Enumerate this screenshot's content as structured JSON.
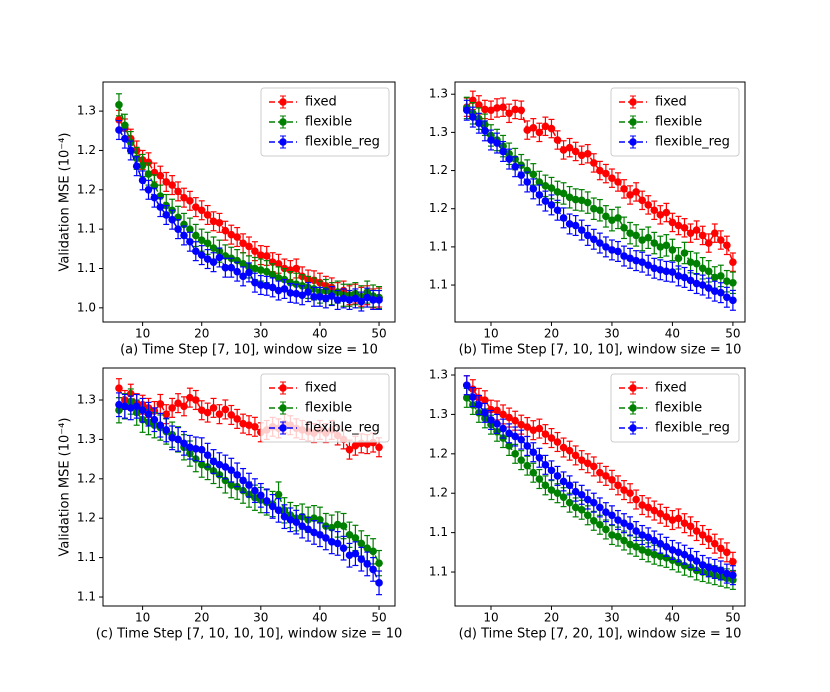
{
  "chart_data": [
    {
      "type": "line",
      "xlabel": "(a) Time Step [7, 10], window size = 10",
      "ylabel": "Validation MSE (10⁻⁴)",
      "x": [
        6,
        7,
        8,
        9,
        10,
        11,
        12,
        13,
        14,
        15,
        16,
        17,
        18,
        19,
        20,
        21,
        22,
        23,
        24,
        25,
        26,
        27,
        28,
        29,
        30,
        31,
        32,
        33,
        34,
        35,
        36,
        37,
        38,
        39,
        40,
        41,
        42,
        43,
        44,
        45,
        46,
        47,
        48,
        49,
        50
      ],
      "xlim": [
        3.3,
        52.7
      ],
      "xticks": [
        10,
        20,
        30,
        40,
        50
      ],
      "ylim": [
        0.982,
        1.287
      ],
      "yticks": [
        {
          "value": 1.0,
          "label": "1.0"
        },
        {
          "value": 1.05,
          "label": "1.1"
        },
        {
          "value": 1.1,
          "label": "1.1"
        },
        {
          "value": 1.15,
          "label": "1.2"
        },
        {
          "value": 1.2,
          "label": "1.2"
        },
        {
          "value": 1.25,
          "label": "1.3"
        }
      ],
      "legend": "upper right",
      "series": [
        {
          "name": "fixed",
          "color": "#ff0000",
          "error": 0.012,
          "values": [
            1.239,
            1.228,
            1.215,
            1.2,
            1.188,
            1.185,
            1.172,
            1.168,
            1.16,
            1.156,
            1.148,
            1.14,
            1.136,
            1.128,
            1.124,
            1.118,
            1.11,
            1.108,
            1.098,
            1.093,
            1.09,
            1.082,
            1.078,
            1.072,
            1.067,
            1.066,
            1.058,
            1.056,
            1.05,
            1.048,
            1.05,
            1.04,
            1.036,
            1.035,
            1.032,
            1.028,
            1.026,
            1.02,
            1.022,
            1.016,
            1.018,
            1.014,
            1.016,
            1.012,
            1.013
          ]
        },
        {
          "name": "flexible",
          "color": "#008000",
          "error": 0.014,
          "values": [
            1.258,
            1.232,
            1.21,
            1.19,
            1.181,
            1.17,
            1.155,
            1.142,
            1.13,
            1.124,
            1.115,
            1.106,
            1.1,
            1.092,
            1.086,
            1.082,
            1.076,
            1.072,
            1.066,
            1.063,
            1.06,
            1.056,
            1.052,
            1.05,
            1.048,
            1.046,
            1.042,
            1.038,
            1.036,
            1.032,
            1.03,
            1.028,
            1.026,
            1.024,
            1.02,
            1.022,
            1.018,
            1.02,
            1.016,
            1.016,
            1.018,
            1.014,
            1.02,
            1.015,
            1.013
          ]
        },
        {
          "name": "flexible_reg",
          "color": "#0000ff",
          "error": 0.012,
          "values": [
            1.226,
            1.215,
            1.2,
            1.18,
            1.162,
            1.15,
            1.14,
            1.128,
            1.118,
            1.112,
            1.1,
            1.092,
            1.084,
            1.072,
            1.067,
            1.062,
            1.058,
            1.064,
            1.051,
            1.051,
            1.046,
            1.04,
            1.045,
            1.032,
            1.029,
            1.028,
            1.026,
            1.022,
            1.024,
            1.019,
            1.018,
            1.016,
            1.02,
            1.014,
            1.014,
            1.012,
            1.015,
            1.01,
            1.012,
            1.01,
            1.012,
            1.008,
            1.013,
            1.01,
            1.01
          ]
        }
      ]
    },
    {
      "type": "line",
      "xlabel": "(b) Time Step [7, 10, 10], window size = 10",
      "x": [
        6,
        7,
        8,
        9,
        10,
        11,
        12,
        13,
        14,
        15,
        16,
        17,
        18,
        19,
        20,
        21,
        22,
        23,
        24,
        25,
        26,
        27,
        28,
        29,
        30,
        31,
        32,
        33,
        34,
        35,
        36,
        37,
        38,
        39,
        40,
        41,
        42,
        43,
        44,
        45,
        46,
        47,
        48,
        49,
        50
      ],
      "xlim": [
        4.05,
        52.0
      ],
      "xticks": [
        10,
        20,
        30,
        40,
        50
      ],
      "ylim": [
        1.0016,
        1.316
      ],
      "yticks": [
        {
          "value": 1.05,
          "label": "1.1"
        },
        {
          "value": 1.1,
          "label": "1.1"
        },
        {
          "value": 1.15,
          "label": "1.2"
        },
        {
          "value": 1.2,
          "label": "1.2"
        },
        {
          "value": 1.25,
          "label": "1.3"
        },
        {
          "value": 1.3,
          "label": "1.3"
        }
      ],
      "legend": "upper right",
      "series": [
        {
          "name": "fixed",
          "color": "#ff0000",
          "error": 0.012,
          "values": [
            1.283,
            1.292,
            1.286,
            1.28,
            1.279,
            1.282,
            1.283,
            1.275,
            1.28,
            1.279,
            1.253,
            1.256,
            1.25,
            1.258,
            1.255,
            1.24,
            1.227,
            1.23,
            1.225,
            1.22,
            1.222,
            1.21,
            1.2,
            1.196,
            1.19,
            1.185,
            1.176,
            1.168,
            1.172,
            1.161,
            1.155,
            1.148,
            1.142,
            1.145,
            1.132,
            1.128,
            1.125,
            1.118,
            1.122,
            1.115,
            1.105,
            1.118,
            1.109,
            1.102,
            1.08
          ]
        },
        {
          "name": "flexible",
          "color": "#008000",
          "error": 0.014,
          "values": [
            1.282,
            1.275,
            1.268,
            1.26,
            1.246,
            1.24,
            1.232,
            1.222,
            1.215,
            1.207,
            1.2,
            1.195,
            1.185,
            1.18,
            1.177,
            1.172,
            1.17,
            1.165,
            1.162,
            1.161,
            1.158,
            1.15,
            1.148,
            1.14,
            1.135,
            1.138,
            1.125,
            1.118,
            1.115,
            1.109,
            1.112,
            1.105,
            1.1,
            1.102,
            1.096,
            1.085,
            1.092,
            1.08,
            1.078,
            1.072,
            1.068,
            1.06,
            1.062,
            1.055,
            1.053
          ]
        },
        {
          "name": "flexible_reg",
          "color": "#0000ff",
          "error": 0.013,
          "values": [
            1.279,
            1.27,
            1.262,
            1.252,
            1.24,
            1.236,
            1.225,
            1.215,
            1.205,
            1.194,
            1.185,
            1.176,
            1.168,
            1.16,
            1.155,
            1.148,
            1.138,
            1.13,
            1.128,
            1.122,
            1.115,
            1.11,
            1.105,
            1.1,
            1.096,
            1.094,
            1.088,
            1.085,
            1.082,
            1.08,
            1.076,
            1.072,
            1.07,
            1.068,
            1.067,
            1.062,
            1.06,
            1.056,
            1.052,
            1.05,
            1.046,
            1.042,
            1.04,
            1.034,
            1.03
          ]
        }
      ]
    },
    {
      "type": "line",
      "xlabel": "(c) Time Step [7, 10, 10, 10], window size = 10",
      "ylabel": "Validation MSE (10⁻⁴)",
      "x": [
        6,
        7,
        8,
        9,
        10,
        11,
        12,
        13,
        14,
        15,
        16,
        17,
        18,
        19,
        20,
        21,
        22,
        23,
        24,
        25,
        26,
        27,
        28,
        29,
        30,
        31,
        32,
        33,
        34,
        35,
        36,
        37,
        38,
        39,
        40,
        41,
        42,
        43,
        44,
        45,
        46,
        47,
        48,
        49,
        50
      ],
      "xlim": [
        3.3,
        52.7
      ],
      "xticks": [
        10,
        20,
        30,
        40,
        50
      ],
      "ylim": [
        1.0386,
        1.3406
      ],
      "yticks": [
        {
          "value": 1.05,
          "label": "1.1"
        },
        {
          "value": 1.1,
          "label": "1.1"
        },
        {
          "value": 1.15,
          "label": "1.2"
        },
        {
          "value": 1.2,
          "label": "1.2"
        },
        {
          "value": 1.25,
          "label": "1.3"
        },
        {
          "value": 1.3,
          "label": "1.3"
        }
      ],
      "legend": "upper right",
      "series": [
        {
          "name": "fixed",
          "color": "#ff0000",
          "error": 0.012,
          "values": [
            1.315,
            1.3,
            1.308,
            1.296,
            1.294,
            1.29,
            1.286,
            1.295,
            1.282,
            1.29,
            1.296,
            1.292,
            1.303,
            1.3,
            1.287,
            1.284,
            1.29,
            1.282,
            1.288,
            1.281,
            1.276,
            1.27,
            1.268,
            1.266,
            1.259,
            1.262,
            1.266,
            1.264,
            1.27,
            1.268,
            1.264,
            1.262,
            1.26,
            1.258,
            1.262,
            1.258,
            1.262,
            1.255,
            1.25,
            1.237,
            1.242,
            1.245,
            1.244,
            1.246,
            1.24
          ]
        },
        {
          "name": "flexible",
          "color": "#008000",
          "error": 0.016,
          "values": [
            1.287,
            1.292,
            1.298,
            1.284,
            1.275,
            1.272,
            1.268,
            1.265,
            1.26,
            1.256,
            1.25,
            1.24,
            1.232,
            1.225,
            1.218,
            1.215,
            1.21,
            1.205,
            1.198,
            1.192,
            1.19,
            1.185,
            1.18,
            1.176,
            1.173,
            1.17,
            1.168,
            1.18,
            1.16,
            1.154,
            1.15,
            1.152,
            1.148,
            1.15,
            1.148,
            1.14,
            1.138,
            1.142,
            1.14,
            1.129,
            1.125,
            1.118,
            1.112,
            1.108,
            1.093
          ]
        },
        {
          "name": "flexible_reg",
          "color": "#0000ff",
          "error": 0.015,
          "values": [
            1.294,
            1.292,
            1.29,
            1.292,
            1.287,
            1.282,
            1.275,
            1.268,
            1.262,
            1.252,
            1.25,
            1.245,
            1.24,
            1.238,
            1.237,
            1.23,
            1.222,
            1.218,
            1.215,
            1.211,
            1.205,
            1.198,
            1.192,
            1.185,
            1.179,
            1.172,
            1.165,
            1.16,
            1.152,
            1.148,
            1.145,
            1.14,
            1.136,
            1.132,
            1.129,
            1.125,
            1.12,
            1.118,
            1.112,
            1.103,
            1.105,
            1.098,
            1.092,
            1.085,
            1.068
          ]
        }
      ]
    },
    {
      "type": "line",
      "xlabel": "(d) Time Step [7, 20, 10], window size = 10",
      "x": [
        6,
        7,
        8,
        9,
        10,
        11,
        12,
        13,
        14,
        15,
        16,
        17,
        18,
        19,
        20,
        21,
        22,
        23,
        24,
        25,
        26,
        27,
        28,
        29,
        30,
        31,
        32,
        33,
        34,
        35,
        36,
        37,
        38,
        39,
        40,
        41,
        42,
        43,
        44,
        45,
        46,
        47,
        48,
        49,
        50
      ],
      "xlim": [
        4.05,
        52.0
      ],
      "xticks": [
        10,
        20,
        30,
        40,
        50
      ],
      "ylim": [
        1.0069,
        1.3089
      ],
      "yticks": [
        {
          "value": 1.05,
          "label": "1.1"
        },
        {
          "value": 1.1,
          "label": "1.1"
        },
        {
          "value": 1.15,
          "label": "1.2"
        },
        {
          "value": 1.2,
          "label": "1.2"
        },
        {
          "value": 1.25,
          "label": "1.3"
        },
        {
          "value": 1.3,
          "label": "1.3"
        }
      ],
      "legend": "upper right",
      "series": [
        {
          "name": "fixed",
          "color": "#ff0000",
          "error": 0.012,
          "values": [
            1.287,
            1.282,
            1.271,
            1.268,
            1.256,
            1.255,
            1.25,
            1.246,
            1.242,
            1.237,
            1.234,
            1.23,
            1.232,
            1.225,
            1.22,
            1.215,
            1.208,
            1.204,
            1.198,
            1.192,
            1.188,
            1.184,
            1.176,
            1.172,
            1.167,
            1.16,
            1.154,
            1.15,
            1.142,
            1.135,
            1.132,
            1.128,
            1.124,
            1.12,
            1.116,
            1.118,
            1.112,
            1.108,
            1.102,
            1.097,
            1.092,
            1.086,
            1.08,
            1.075,
            1.063
          ]
        },
        {
          "name": "flexible",
          "color": "#008000",
          "error": 0.012,
          "values": [
            1.271,
            1.262,
            1.252,
            1.245,
            1.237,
            1.228,
            1.22,
            1.21,
            1.2,
            1.192,
            1.185,
            1.176,
            1.168,
            1.16,
            1.154,
            1.15,
            1.145,
            1.138,
            1.132,
            1.129,
            1.122,
            1.115,
            1.11,
            1.104,
            1.097,
            1.095,
            1.09,
            1.085,
            1.082,
            1.078,
            1.075,
            1.072,
            1.07,
            1.068,
            1.065,
            1.062,
            1.058,
            1.056,
            1.052,
            1.05,
            1.048,
            1.046,
            1.044,
            1.042,
            1.04
          ]
        },
        {
          "name": "flexible_reg",
          "color": "#0000ff",
          "error": 0.012,
          "values": [
            1.287,
            1.272,
            1.262,
            1.252,
            1.243,
            1.238,
            1.232,
            1.226,
            1.222,
            1.218,
            1.21,
            1.202,
            1.195,
            1.186,
            1.179,
            1.172,
            1.165,
            1.16,
            1.152,
            1.148,
            1.142,
            1.138,
            1.132,
            1.126,
            1.122,
            1.116,
            1.112,
            1.108,
            1.102,
            1.097,
            1.094,
            1.09,
            1.086,
            1.082,
            1.078,
            1.075,
            1.072,
            1.068,
            1.064,
            1.059,
            1.056,
            1.054,
            1.052,
            1.048,
            1.046
          ]
        }
      ]
    }
  ]
}
